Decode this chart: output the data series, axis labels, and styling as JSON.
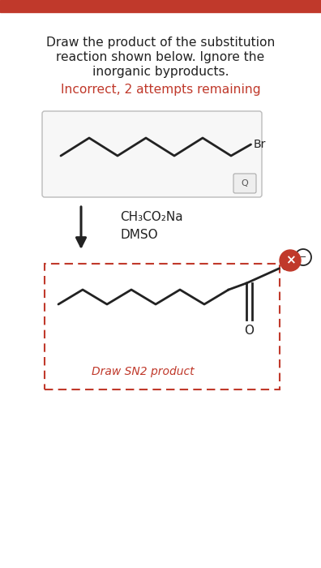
{
  "title_line1": "Draw the product of the substitution",
  "title_line2": "reaction shown below. Ignore the",
  "title_line3": "inorganic byproducts.",
  "incorrect_text": "Incorrect, 2 attempts remaining",
  "reagent1": "CH₃CO₂Na",
  "reagent2": "DMSO",
  "draw_label": "Draw SN2 product",
  "background_color": "#ffffff",
  "text_color": "#222222",
  "red_color": "#c0392b",
  "top_bar_color": "#c0392b",
  "line_color": "#222222"
}
